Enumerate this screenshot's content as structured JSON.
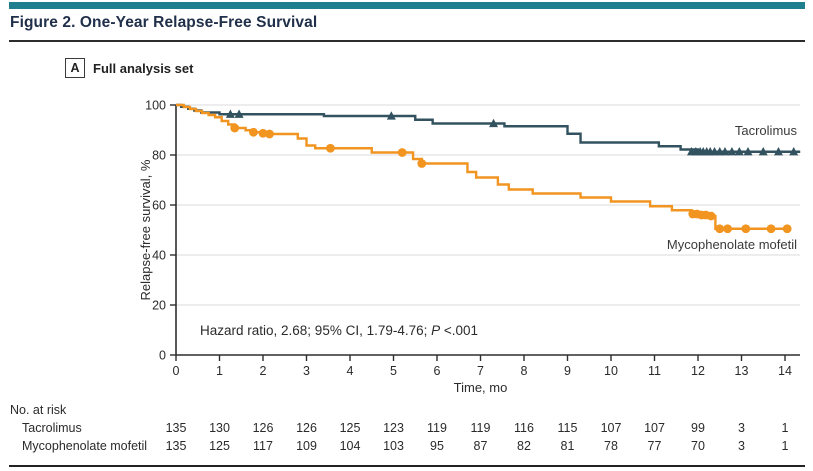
{
  "figure": {
    "title": "Figure 2. One-Year Relapse-Free Survival",
    "panel_label": "A",
    "panel_title": "Full analysis set",
    "annotation": {
      "text": "Hazard ratio, 2.68; 95% CI, 1.79-4.76; ",
      "stat_label": "P",
      "stat_value": " <.001"
    }
  },
  "colors": {
    "accent_teal": "#1F7F8E",
    "tacrolimus": "#32525F",
    "mycophenolate": "#F29420",
    "gridline": "#DBDBDB",
    "axis": "#2E2E2E"
  },
  "chart_data": {
    "type": "line",
    "subtype": "kaplan-meier-step",
    "title": "One-Year Relapse-Free Survival",
    "panel": "A: Full analysis set",
    "xlabel": "Time, mo",
    "ylabel": "Relapse-free survival, %",
    "xlim": [
      0,
      14.35
    ],
    "ylim": [
      0,
      100
    ],
    "xticks": [
      0,
      1,
      2,
      3,
      4,
      5,
      6,
      7,
      8,
      9,
      10,
      11,
      12,
      13,
      14
    ],
    "yticks": [
      0,
      20,
      40,
      60,
      80,
      100
    ],
    "grid": "horizontal",
    "legend_position": "inline-right",
    "annotation": "Hazard ratio, 2.68; 95% CI, 1.79-4.76; P <.001",
    "series": [
      {
        "name": "Tacrolimus",
        "color": "#32525F",
        "marker": "triangle",
        "steps": [
          [
            0,
            100
          ],
          [
            0.12,
            99.3
          ],
          [
            0.28,
            98.5
          ],
          [
            0.42,
            97.8
          ],
          [
            0.58,
            97.0
          ],
          [
            1.0,
            96.3
          ],
          [
            3.4,
            95.6
          ],
          [
            5.5,
            94.1
          ],
          [
            5.9,
            92.6
          ],
          [
            7.55,
            91.5
          ],
          [
            9.0,
            88.5
          ],
          [
            9.3,
            85.0
          ],
          [
            11.1,
            83.5
          ],
          [
            11.6,
            82.2
          ],
          [
            12.0,
            81.3
          ],
          [
            14.35,
            81.3
          ]
        ],
        "censors": [
          [
            1.25,
            96.3
          ],
          [
            1.45,
            96.3
          ],
          [
            4.95,
            95.6
          ],
          [
            7.3,
            92.6
          ],
          [
            11.85,
            81.3
          ],
          [
            11.95,
            81.3
          ],
          [
            12.05,
            81.3
          ],
          [
            12.12,
            81.3
          ],
          [
            12.2,
            81.3
          ],
          [
            12.28,
            81.3
          ],
          [
            12.38,
            81.3
          ],
          [
            12.5,
            81.3
          ],
          [
            12.62,
            81.3
          ],
          [
            12.78,
            81.3
          ],
          [
            12.95,
            81.3
          ],
          [
            13.15,
            81.3
          ],
          [
            13.5,
            81.3
          ],
          [
            13.85,
            81.3
          ],
          [
            14.2,
            81.3
          ]
        ]
      },
      {
        "name": "Mycophenolate mofetil",
        "color": "#F29420",
        "marker": "circle",
        "steps": [
          [
            0,
            100
          ],
          [
            0.18,
            99.2
          ],
          [
            0.32,
            98.4
          ],
          [
            0.46,
            97.6
          ],
          [
            0.6,
            96.8
          ],
          [
            0.75,
            96.0
          ],
          [
            0.9,
            95.1
          ],
          [
            1.05,
            93.6
          ],
          [
            1.2,
            92.2
          ],
          [
            1.35,
            90.8
          ],
          [
            1.6,
            89.9
          ],
          [
            1.8,
            89.1
          ],
          [
            2.1,
            88.4
          ],
          [
            2.8,
            86.6
          ],
          [
            3.0,
            83.8
          ],
          [
            3.2,
            82.7
          ],
          [
            4.5,
            81.0
          ],
          [
            5.45,
            78.4
          ],
          [
            5.65,
            76.6
          ],
          [
            6.7,
            73.2
          ],
          [
            6.9,
            71.0
          ],
          [
            7.4,
            68.2
          ],
          [
            7.65,
            66.2
          ],
          [
            8.2,
            64.6
          ],
          [
            9.3,
            63.0
          ],
          [
            10.0,
            61.4
          ],
          [
            10.9,
            59.5
          ],
          [
            11.4,
            57.9
          ],
          [
            11.85,
            56.4
          ],
          [
            12.1,
            56.0
          ],
          [
            12.3,
            55.6
          ],
          [
            12.4,
            50.5
          ],
          [
            14.1,
            50.5
          ]
        ],
        "censors": [
          [
            1.35,
            90.8
          ],
          [
            1.78,
            89.1
          ],
          [
            2.0,
            88.7
          ],
          [
            2.15,
            88.4
          ],
          [
            3.55,
            82.7
          ],
          [
            5.2,
            81.0
          ],
          [
            5.65,
            76.6
          ],
          [
            11.88,
            56.4
          ],
          [
            11.98,
            56.4
          ],
          [
            12.08,
            56.0
          ],
          [
            12.18,
            56.0
          ],
          [
            12.3,
            55.6
          ],
          [
            12.5,
            50.5
          ],
          [
            12.68,
            50.5
          ],
          [
            13.1,
            50.5
          ],
          [
            13.68,
            50.5
          ],
          [
            14.05,
            50.5
          ]
        ]
      }
    ]
  },
  "risk_table": {
    "header": "No. at risk",
    "times": [
      0,
      1,
      2,
      3,
      4,
      5,
      6,
      7,
      8,
      9,
      10,
      11,
      12,
      13,
      14
    ],
    "rows": [
      {
        "label": "Tacrolimus",
        "values": [
          135,
          130,
          126,
          126,
          125,
          123,
          119,
          119,
          116,
          115,
          107,
          107,
          99,
          3,
          1
        ]
      },
      {
        "label": "Mycophenolate mofetil",
        "values": [
          135,
          125,
          117,
          109,
          104,
          103,
          95,
          87,
          82,
          81,
          78,
          77,
          70,
          3,
          1
        ]
      }
    ]
  }
}
